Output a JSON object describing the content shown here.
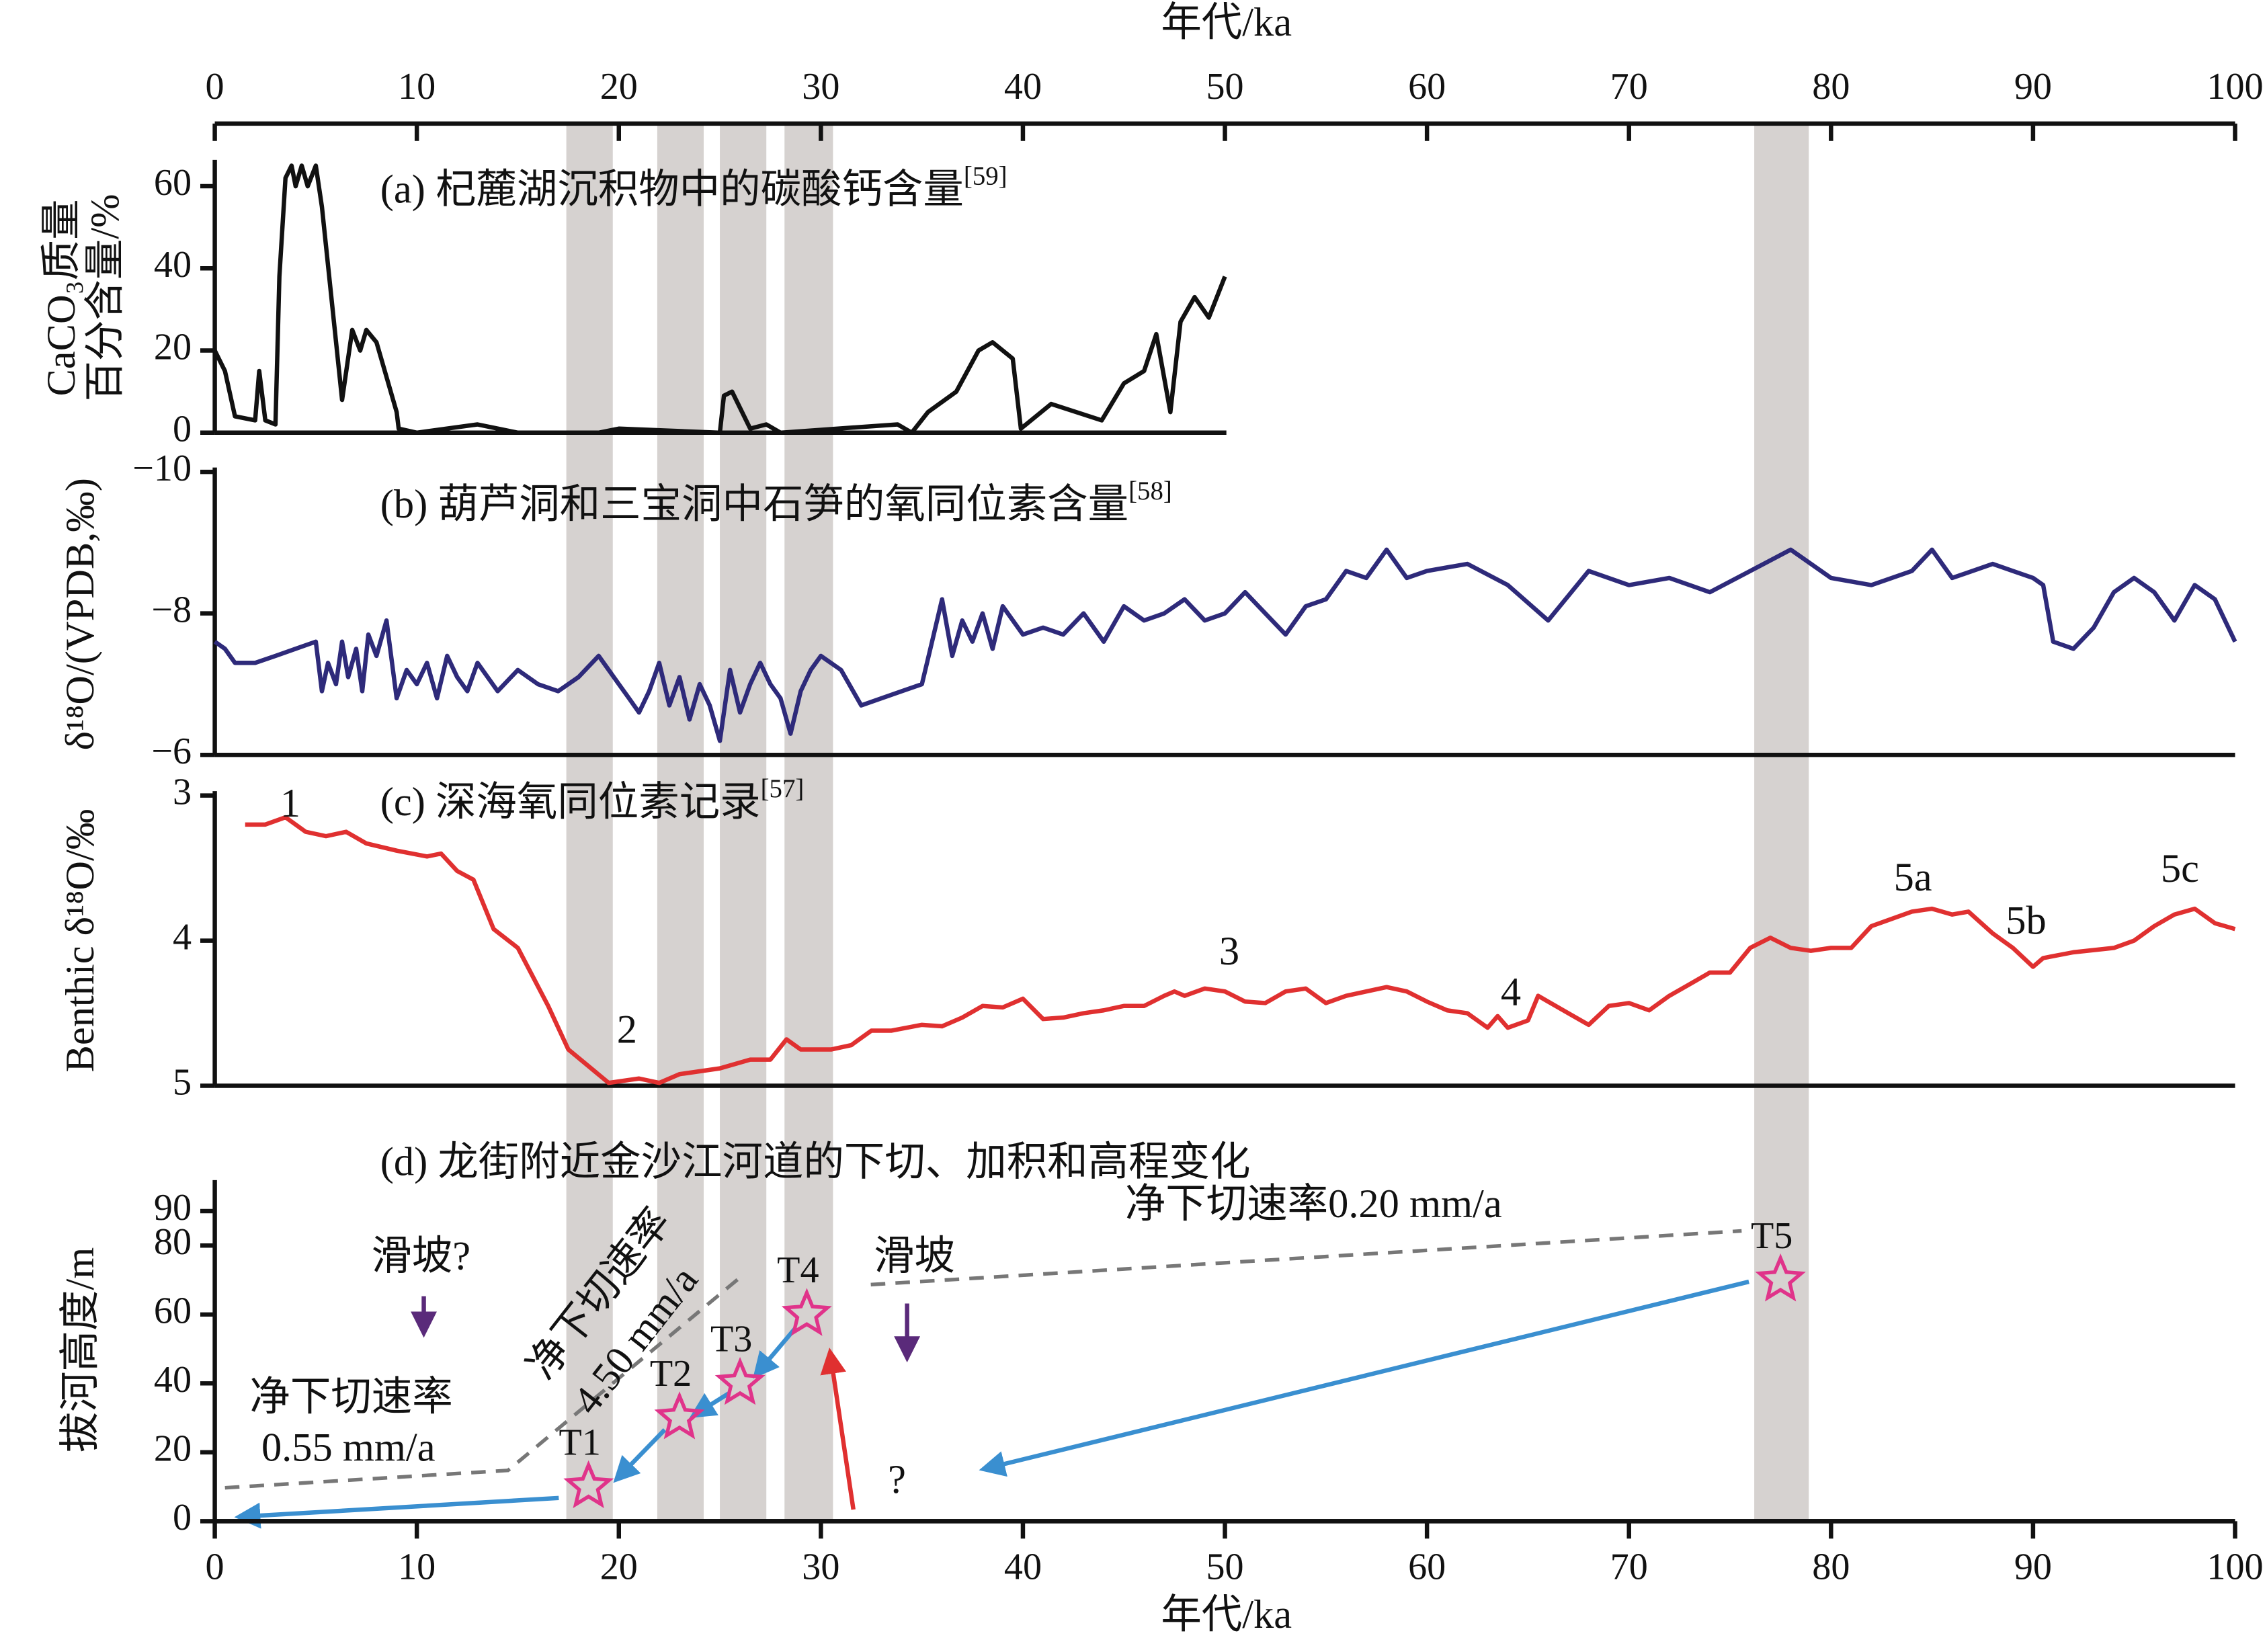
{
  "bands": [
    [
      17.4,
      19.7
    ],
    [
      21.9,
      24.2
    ],
    [
      25,
      27.3
    ],
    [
      28.2,
      30.6
    ],
    [
      76.2,
      78.9
    ]
  ],
  "chart_data": [
    {
      "type": "line",
      "title": "(a) 杞麓湖沉积物中的碳酸钙含量",
      "title_ref": "[59]",
      "ylabel": [
        "CaCO₃质量",
        "百分含量/%"
      ],
      "xlabel": "年代/ka",
      "color": "#111111",
      "xlim": [
        0,
        100
      ],
      "xticks": [
        0,
        10,
        20,
        30,
        40,
        50,
        60,
        70,
        80,
        90,
        100
      ],
      "ylim": [
        0,
        65
      ],
      "yticks": [
        0,
        20,
        40,
        60
      ],
      "x": [
        0,
        0.5,
        1,
        2,
        2.2,
        2.5,
        3,
        3.2,
        3.5,
        3.8,
        4,
        4.3,
        4.6,
        5,
        5.3,
        6.3,
        6.8,
        7.2,
        7.5,
        8,
        9,
        9.1,
        10,
        13,
        15,
        19,
        20,
        25,
        25.2,
        25.6,
        26.5,
        27.3,
        28,
        33.8,
        34.5,
        35.3,
        36.7,
        37.8,
        38.5,
        39.5,
        39.9,
        41.4,
        43.9,
        45,
        46,
        46.6,
        47.3,
        47.8,
        48.5,
        49.2,
        50
      ],
      "values": [
        20,
        15,
        4,
        3,
        15,
        3,
        2,
        38,
        62,
        65,
        60,
        65,
        60,
        65,
        55,
        8,
        25,
        20,
        25,
        22,
        5,
        1,
        0,
        2,
        0,
        0,
        1,
        0,
        9,
        10,
        1,
        2,
        0,
        2,
        0,
        5,
        10,
        20,
        22,
        18,
        1,
        7,
        3,
        12,
        15,
        24,
        5,
        27,
        33,
        28,
        38
      ]
    },
    {
      "type": "line",
      "title": "(b) 葫芦洞和三宝洞中石笋的氧同位素含量",
      "title_ref": "[58]",
      "ylabel": [
        "δ¹⁸O/(VPDB,‰)"
      ],
      "color": "#2e2a7a",
      "xlim": [
        0,
        100
      ],
      "ylim": [
        -6,
        -10
      ],
      "yticks": [
        {
          "value": -10,
          "label": "−10"
        },
        {
          "value": -8,
          "label": "−8"
        },
        {
          "value": -6,
          "label": "−6"
        }
      ],
      "x": [
        0,
        0.5,
        1,
        2,
        3,
        4,
        5,
        5.3,
        5.6,
        6,
        6.3,
        6.6,
        7,
        7.3,
        7.6,
        8,
        8.5,
        9,
        9.5,
        10,
        10.5,
        11,
        11.5,
        12,
        12.5,
        13,
        14,
        15,
        16,
        17,
        18,
        19,
        20,
        20.5,
        21,
        21.5,
        22,
        22.5,
        23,
        23.5,
        24,
        24.5,
        25,
        25.5,
        26,
        26.5,
        27,
        27.5,
        28,
        28.5,
        29,
        29.5,
        30,
        31,
        32,
        33,
        34,
        35,
        35.5,
        36,
        36.5,
        37,
        37.5,
        38,
        38.5,
        39,
        40,
        41,
        42,
        43,
        44,
        45,
        46,
        47,
        48,
        49,
        50,
        51,
        52,
        53,
        54,
        55,
        56,
        57,
        58,
        59,
        60,
        62,
        64,
        66,
        68,
        70,
        72,
        74,
        76,
        78,
        80,
        82,
        84,
        85,
        86,
        88,
        89,
        90,
        90.5,
        91,
        92,
        93,
        94,
        95,
        96,
        97,
        98,
        99,
        100
      ],
      "values": [
        -7.6,
        -7.5,
        -7.3,
        -7.3,
        -7.4,
        -7.5,
        -7.6,
        -6.9,
        -7.3,
        -7.0,
        -7.6,
        -7.1,
        -7.5,
        -6.9,
        -7.7,
        -7.4,
        -7.9,
        -6.8,
        -7.2,
        -7.0,
        -7.3,
        -6.8,
        -7.4,
        -7.1,
        -6.9,
        -7.3,
        -6.9,
        -7.2,
        -7.0,
        -6.9,
        -7.1,
        -7.4,
        -7.0,
        -6.8,
        -6.6,
        -6.9,
        -7.3,
        -6.7,
        -7.1,
        -6.5,
        -7.0,
        -6.7,
        -6.2,
        -7.2,
        -6.6,
        -7.0,
        -7.3,
        -7.0,
        -6.8,
        -6.3,
        -6.9,
        -7.2,
        -7.4,
        -7.2,
        -6.7,
        -6.8,
        -6.9,
        -7.0,
        -7.6,
        -8.2,
        -7.4,
        -7.9,
        -7.6,
        -8.0,
        -7.5,
        -8.1,
        -7.7,
        -7.8,
        -7.7,
        -8.0,
        -7.6,
        -8.1,
        -7.9,
        -8.0,
        -8.2,
        -7.9,
        -8.0,
        -8.3,
        -8.0,
        -7.7,
        -8.1,
        -8.2,
        -8.6,
        -8.5,
        -8.9,
        -8.5,
        -8.6,
        -8.7,
        -8.4,
        -7.9,
        -8.6,
        -8.4,
        -8.5,
        -8.3,
        -8.6,
        -8.9,
        -8.5,
        -8.4,
        -8.6,
        -8.9,
        -8.5,
        -8.7,
        -8.6,
        -8.5,
        -8.4,
        -7.6,
        -7.5,
        -7.8,
        -8.3,
        -8.5,
        -8.3,
        -7.9,
        -8.4,
        -8.2,
        -7.6
      ]
    },
    {
      "type": "line",
      "title": "(c) 深海氧同位素记录",
      "title_ref": "[57]",
      "ylabel": [
        "Benthic δ¹⁸O/‰"
      ],
      "color": "#e03030",
      "xlim": [
        0,
        100
      ],
      "ylim": [
        5,
        3
      ],
      "yticks": [
        3,
        4,
        5
      ],
      "annotations": [
        "1",
        "2",
        "3",
        "4",
        "5a",
        "5b",
        "5c"
      ],
      "x": [
        1.5,
        2.5,
        3.5,
        4.5,
        5.5,
        6.5,
        7.5,
        9,
        10.5,
        11.2,
        12,
        12.8,
        13.8,
        15,
        16.5,
        17.5,
        19.5,
        21,
        22,
        23,
        25,
        26.5,
        27.5,
        28.3,
        29,
        30.5,
        31.5,
        32.5,
        33.5,
        35,
        36,
        37,
        38,
        39,
        40,
        41,
        42,
        43,
        44,
        45,
        46,
        47,
        47.5,
        48,
        49,
        50,
        51,
        52,
        53,
        54,
        55,
        56,
        57,
        58,
        59,
        60,
        61,
        62,
        63,
        63.5,
        64,
        65,
        65.5,
        66,
        67,
        68,
        69,
        70,
        71,
        72,
        73,
        74,
        75,
        76,
        77,
        78,
        79,
        80,
        81,
        82,
        83,
        84,
        85,
        86,
        86.8,
        88,
        89,
        90,
        90.5,
        92,
        94,
        95,
        96,
        97,
        98,
        99,
        100
      ],
      "values": [
        3.2,
        3.2,
        3.15,
        3.25,
        3.28,
        3.25,
        3.33,
        3.38,
        3.42,
        3.4,
        3.52,
        3.58,
        3.92,
        4.05,
        4.45,
        4.75,
        4.98,
        4.95,
        4.98,
        4.92,
        4.88,
        4.82,
        4.82,
        4.68,
        4.75,
        4.75,
        4.72,
        4.62,
        4.62,
        4.58,
        4.59,
        4.53,
        4.45,
        4.46,
        4.4,
        4.54,
        4.53,
        4.5,
        4.48,
        4.45,
        4.45,
        4.38,
        4.35,
        4.38,
        4.33,
        4.35,
        4.42,
        4.43,
        4.35,
        4.33,
        4.43,
        4.38,
        4.35,
        4.32,
        4.35,
        4.42,
        4.48,
        4.5,
        4.6,
        4.52,
        4.6,
        4.55,
        4.38,
        4.42,
        4.5,
        4.58,
        4.45,
        4.43,
        4.48,
        4.38,
        4.3,
        4.22,
        4.22,
        4.05,
        3.98,
        4.05,
        4.07,
        4.05,
        4.05,
        3.9,
        3.85,
        3.8,
        3.78,
        3.82,
        3.8,
        3.95,
        4.05,
        4.18,
        4.12,
        4.08,
        4.05,
        4.0,
        3.9,
        3.82,
        3.78,
        3.88,
        3.92
      ]
    },
    {
      "type": "scatter",
      "marker": "star",
      "title": "(d) 龙街附近金沙江河道的下切、加积和高程变化",
      "ylabel": [
        "拔河高度/m"
      ],
      "xlabel": "年代/ka",
      "color": "#e0338a",
      "xlim": [
        0,
        100
      ],
      "xticks": [
        0,
        10,
        20,
        30,
        40,
        50,
        60,
        70,
        80,
        90,
        100
      ],
      "ylim": [
        0,
        99
      ],
      "yticks": [
        0,
        20,
        40,
        60,
        80,
        90
      ],
      "labels": [
        "T1",
        "T2",
        "T3",
        "T4",
        "T5"
      ],
      "x": [
        18.5,
        23,
        26,
        29.3,
        77.5
      ],
      "values": [
        10,
        30,
        40,
        60,
        70
      ],
      "annotations": [
        "滑坡?",
        "滑坡",
        "净下切速率",
        "0.55 mm/a",
        "净下切速率",
        "4.50 mm/a",
        "净下切速率0.20 mm/a",
        "?"
      ]
    }
  ]
}
